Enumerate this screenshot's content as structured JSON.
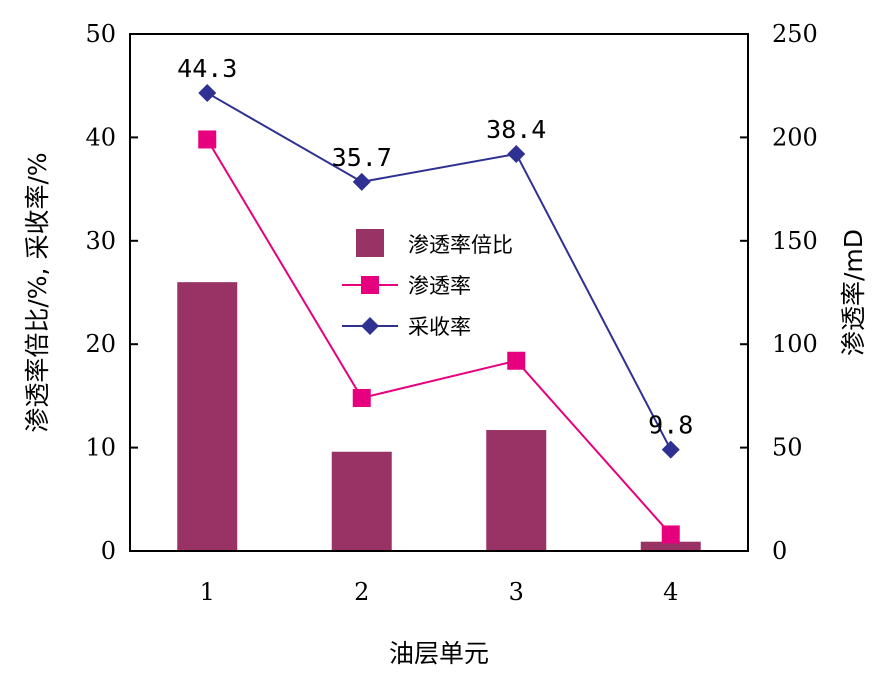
{
  "chart_data": {
    "type": "bar",
    "categories": [
      "1",
      "2",
      "3",
      "4"
    ],
    "xlabel": "油层单元",
    "ylabel": "渗透率倍比/%, 采收率/%",
    "y2label": "渗透率/mD",
    "ylim": [
      0,
      50
    ],
    "y2lim": [
      0,
      250
    ],
    "yticks": [
      0,
      10,
      20,
      30,
      40,
      50
    ],
    "y2ticks": [
      0,
      50,
      100,
      150,
      200,
      250
    ],
    "legend_position": "center",
    "series": [
      {
        "name": "渗透率倍比",
        "type": "bar",
        "axis": "left",
        "color": "#993366",
        "values": [
          26.0,
          9.6,
          11.7,
          0.9
        ]
      },
      {
        "name": "渗透率",
        "type": "line",
        "marker": "square",
        "axis": "right",
        "color": "#E6007E",
        "values": [
          199,
          74,
          92,
          8
        ]
      },
      {
        "name": "采收率",
        "type": "line",
        "marker": "diamond",
        "axis": "left",
        "color": "#2E3192",
        "values": [
          44.3,
          35.7,
          38.4,
          9.8
        ],
        "labels": [
          "44.3",
          "35.7",
          "38.4",
          "9.8"
        ]
      }
    ]
  }
}
